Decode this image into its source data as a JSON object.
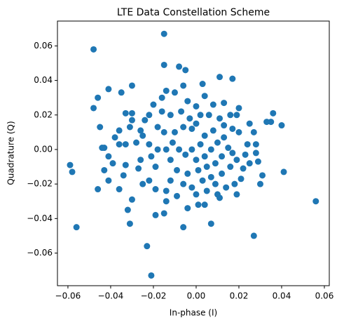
{
  "chart_data": {
    "type": "scatter",
    "title": "LTE Data Constellation Scheme",
    "xlabel": "In-phase (I)",
    "ylabel": "Quadrature (Q)",
    "color": "#1f77b4",
    "xlim": [
      -0.0649,
      0.0623
    ],
    "ylim": [
      -0.0789,
      0.0744
    ],
    "xticks": [
      {
        "value": -0.06,
        "label": "−0.06"
      },
      {
        "value": -0.04,
        "label": "−0.04"
      },
      {
        "value": -0.02,
        "label": "−0.02"
      },
      {
        "value": 0,
        "label": "0.00"
      },
      0.02,
      0.04,
      0.06
    ],
    "yticks": [
      {
        "value": -0.06,
        "label": "−0.06"
      },
      {
        "value": -0.04,
        "label": "−0.04"
      },
      {
        "value": -0.02,
        "label": "−0.02"
      },
      {
        "value": 0,
        "label": "0.00"
      },
      0.02,
      0.04,
      0.06
    ],
    "x": [
      -0.048,
      -0.015,
      -0.015,
      -0.008,
      -0.005,
      0.011,
      0.017,
      0.003,
      -0.03,
      -0.041,
      -0.035,
      -0.046,
      -0.048,
      -0.059,
      -0.058,
      -0.056,
      -0.046,
      0.056,
      0.036,
      0.04,
      0.041,
      -0.023,
      -0.021,
      -0.031,
      -0.032,
      0.027,
      -0.006,
      0.007,
      -0.015,
      -0.019,
      -0.03,
      -0.036,
      -0.041,
      0.001,
      0.004,
      -0.004,
      0.011,
      0.01,
      0.019,
      0.03,
      0.033,
      0.035,
      0.028,
      0.028,
      0.029,
      0.024,
      0.02,
      0.019,
      0.016,
      0.017,
      0.02,
      0.013,
      0.011,
      0.006,
      0.002,
      -0.003,
      -0.007,
      -0.012,
      -0.016,
      -0.02,
      -0.022,
      -0.024,
      -0.03,
      -0.033,
      -0.03,
      -0.031,
      -0.036,
      -0.038,
      -0.033,
      -0.036,
      -0.043,
      -0.044,
      -0.041,
      -0.039,
      -0.033,
      -0.034,
      -0.027,
      -0.026,
      -0.028,
      -0.025,
      -0.022,
      -0.018,
      -0.021,
      -0.019,
      -0.022,
      -0.025,
      -0.019,
      -0.014,
      -0.012,
      -0.009,
      -0.012,
      -0.014,
      -0.011,
      -0.015,
      -0.01,
      -0.006,
      -0.002,
      0.0,
      0.004,
      0.002,
      -0.002,
      -0.005,
      -0.008,
      0.0,
      0.004,
      0.007,
      0.01,
      0.013,
      0.015,
      0.012,
      0.009,
      0.005,
      0.001,
      -0.004,
      -0.006,
      -0.002,
      0.003,
      0.007,
      0.012,
      0.016,
      0.019,
      0.022,
      0.025,
      0.021,
      0.018,
      0.014,
      0.009,
      0.005,
      0.0,
      -0.009,
      -0.014,
      -0.004,
      0.0,
      0.004,
      -0.01,
      -0.014,
      -0.016,
      0.008,
      0.013,
      0.027,
      0.025,
      0.023,
      0.017,
      -0.026,
      -0.043,
      -0.045,
      0.031,
      -0.006,
      0.008,
      -0.018
    ],
    "values": [
      0.058,
      0.067,
      0.049,
      0.048,
      0.046,
      0.042,
      0.041,
      0.038,
      0.037,
      0.035,
      0.033,
      0.03,
      0.024,
      -0.009,
      -0.013,
      -0.045,
      -0.023,
      -0.03,
      0.021,
      0.014,
      -0.013,
      -0.056,
      -0.073,
      -0.043,
      -0.035,
      -0.05,
      -0.045,
      -0.043,
      -0.037,
      -0.038,
      -0.029,
      -0.023,
      -0.018,
      -0.032,
      -0.032,
      -0.034,
      -0.028,
      -0.026,
      -0.026,
      -0.02,
      0.016,
      0.016,
      0.003,
      -0.002,
      -0.007,
      0.003,
      0.024,
      0.02,
      0.02,
      0.012,
      0.01,
      0.014,
      0.018,
      0.02,
      0.02,
      0.018,
      0.022,
      0.02,
      0.022,
      0.026,
      0.02,
      0.017,
      0.021,
      0.021,
      0.017,
      0.013,
      0.011,
      0.007,
      0.003,
      0.003,
      0.001,
      0.001,
      -0.004,
      -0.008,
      -0.009,
      -0.015,
      -0.011,
      -0.006,
      0.004,
      0.008,
      0.003,
      0.0,
      -0.004,
      -0.01,
      -0.018,
      -0.02,
      -0.023,
      -0.024,
      -0.018,
      -0.012,
      -0.006,
      0.0,
      0.004,
      0.01,
      0.01,
      0.013,
      0.012,
      0.015,
      0.008,
      0.003,
      0.0,
      -0.003,
      0.0,
      -0.006,
      -0.004,
      0.0,
      0.004,
      0.007,
      0.001,
      -0.004,
      -0.008,
      -0.01,
      -0.012,
      -0.014,
      -0.02,
      -0.022,
      -0.018,
      -0.016,
      -0.014,
      -0.01,
      -0.006,
      -0.011,
      -0.008,
      -0.017,
      -0.02,
      -0.022,
      -0.02,
      -0.024,
      -0.026,
      -0.027,
      -0.03,
      0.028,
      0.025,
      0.031,
      0.033,
      0.034,
      0.03,
      0.026,
      0.027,
      0.01,
      0.015,
      -0.003,
      -0.002,
      0.011,
      -0.012,
      0.013,
      -0.015,
      0.037,
      0.011,
      0.013
    ]
  }
}
